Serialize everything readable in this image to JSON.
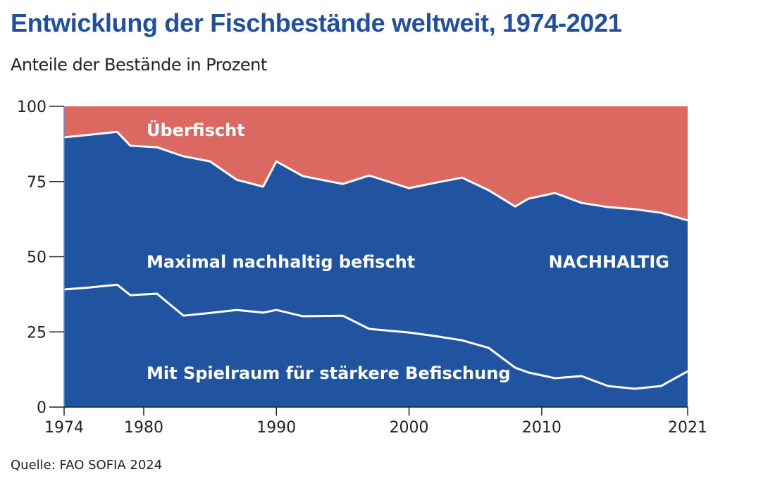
{
  "chart_data": {
    "type": "area",
    "title": "Entwicklung der Fischbestände weltweit, 1974-2021",
    "subtitle": "Anteile der Bestände in Prozent",
    "source": "Quelle: FAO SOFIA 2024",
    "xlim": [
      1974,
      2021
    ],
    "ylim": [
      0,
      100
    ],
    "x_ticks": [
      1974,
      1980,
      1990,
      2000,
      2010,
      2021
    ],
    "y_ticks": [
      0,
      25,
      50,
      75,
      100
    ],
    "grid": false,
    "colors": {
      "sustainable": "#2054a0",
      "overfished": "#dc6961",
      "line": "#ffffff",
      "title": "#1f4f9e"
    },
    "x": [
      1974,
      1976,
      1978,
      1979,
      1981,
      1983,
      1985,
      1987,
      1989,
      1990,
      1992,
      1995,
      1997,
      2000,
      2002,
      2004,
      2006,
      2008,
      2009,
      2011,
      2013,
      2015,
      2017,
      2019,
      2021
    ],
    "series": [
      {
        "name": "Mit Spielraum für stärkere Befischung",
        "cumulative_upper": [
          39.1,
          39.8,
          40.7,
          37.2,
          37.7,
          30.4,
          31.3,
          32.3,
          31.4,
          32.3,
          30.2,
          30.4,
          26.0,
          24.8,
          23.6,
          22.2,
          19.7,
          13.1,
          11.5,
          9.6,
          10.3,
          7.0,
          6.1,
          7.0,
          11.9
        ]
      },
      {
        "name": "Maximal nachhaltig befischt",
        "cumulative_upper": [
          89.7,
          90.6,
          91.5,
          86.9,
          86.4,
          83.4,
          81.7,
          75.6,
          73.3,
          81.7,
          76.8,
          74.2,
          77.0,
          72.8,
          74.6,
          76.3,
          72.1,
          66.7,
          69.3,
          71.2,
          67.9,
          66.5,
          65.8,
          64.6,
          62.1
        ]
      },
      {
        "name": "Überfischt",
        "cumulative_upper": [
          100,
          100,
          100,
          100,
          100,
          100,
          100,
          100,
          100,
          100,
          100,
          100,
          100,
          100,
          100,
          100,
          100,
          100,
          100,
          100,
          100,
          100,
          100,
          100,
          100
        ]
      }
    ],
    "annotations": {
      "overfished": "Überfischt",
      "max_sustainable": "Maximal nachhaltig befischt",
      "sustainable": "NACHHALTIG",
      "underfished": "Mit Spielraum für stärkere Befischung"
    }
  }
}
